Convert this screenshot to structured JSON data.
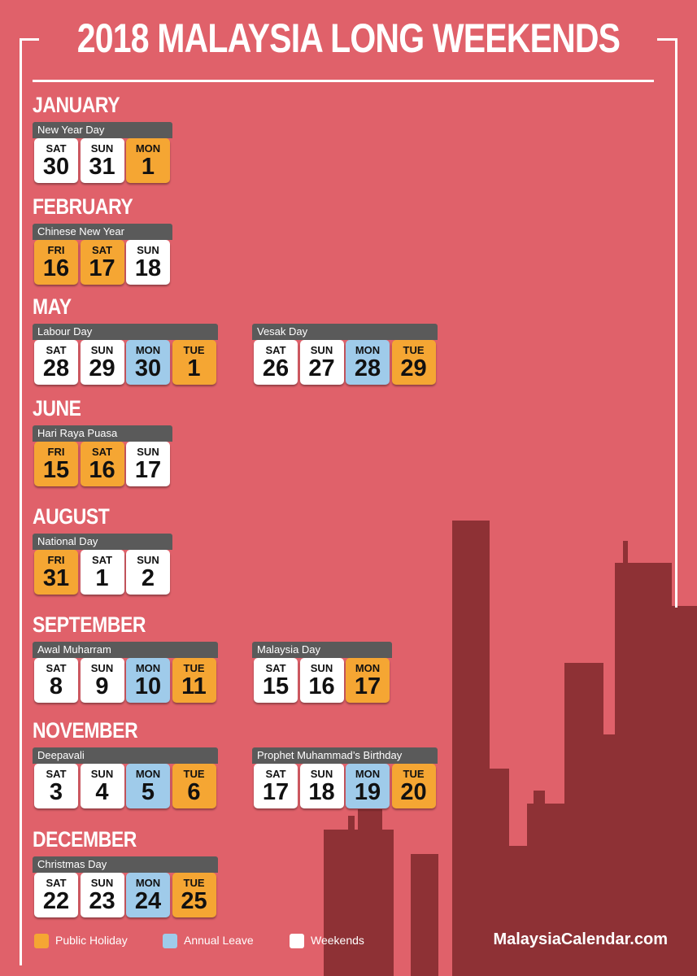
{
  "title": "2018 MALAYSIA LONG WEEKENDS",
  "months": [
    {
      "name": "JANUARY",
      "blocks": [
        {
          "holiday": "New Year Day",
          "days": [
            {
              "dow": "SAT",
              "date": 30,
              "color": "#ffffff"
            },
            {
              "dow": "SUN",
              "date": 31,
              "color": "#ffffff"
            },
            {
              "dow": "MON",
              "date": 1,
              "color": "#f5a633"
            }
          ]
        }
      ]
    },
    {
      "name": "FEBRUARY",
      "blocks": [
        {
          "holiday": "Chinese New Year",
          "days": [
            {
              "dow": "FRI",
              "date": 16,
              "color": "#f5a633"
            },
            {
              "dow": "SAT",
              "date": 17,
              "color": "#f5a633"
            },
            {
              "dow": "SUN",
              "date": 18,
              "color": "#ffffff"
            }
          ]
        }
      ]
    },
    {
      "name": "MAY",
      "blocks": [
        {
          "holiday": "Labour Day",
          "days": [
            {
              "dow": "SAT",
              "date": 28,
              "color": "#ffffff"
            },
            {
              "dow": "SUN",
              "date": 29,
              "color": "#ffffff"
            },
            {
              "dow": "MON",
              "date": 30,
              "color": "#9fcbea"
            },
            {
              "dow": "TUE",
              "date": 1,
              "color": "#f5a633"
            }
          ]
        },
        {
          "holiday": "Vesak Day",
          "days": [
            {
              "dow": "SAT",
              "date": 26,
              "color": "#ffffff"
            },
            {
              "dow": "SUN",
              "date": 27,
              "color": "#ffffff"
            },
            {
              "dow": "MON",
              "date": 28,
              "color": "#9fcbea"
            },
            {
              "dow": "TUE",
              "date": 29,
              "color": "#f5a633"
            }
          ]
        }
      ]
    },
    {
      "name": "JUNE",
      "blocks": [
        {
          "holiday": "Hari Raya Puasa",
          "days": [
            {
              "dow": "FRI",
              "date": 15,
              "color": "#f5a633"
            },
            {
              "dow": "SAT",
              "date": 16,
              "color": "#f5a633"
            },
            {
              "dow": "SUN",
              "date": 17,
              "color": "#ffffff"
            }
          ]
        }
      ]
    },
    {
      "name": "AUGUST",
      "blocks": [
        {
          "holiday": "National Day",
          "days": [
            {
              "dow": "FRI",
              "date": 31,
              "color": "#f5a633"
            },
            {
              "dow": "SAT",
              "date": 1,
              "color": "#ffffff"
            },
            {
              "dow": "SUN",
              "date": 2,
              "color": "#ffffff"
            }
          ]
        }
      ]
    },
    {
      "name": "SEPTEMBER",
      "blocks": [
        {
          "holiday": "Awal Muharram",
          "days": [
            {
              "dow": "SAT",
              "date": 8,
              "color": "#ffffff"
            },
            {
              "dow": "SUN",
              "date": 9,
              "color": "#ffffff"
            },
            {
              "dow": "MON",
              "date": 10,
              "color": "#9fcbea"
            },
            {
              "dow": "TUE",
              "date": 11,
              "color": "#f5a633"
            }
          ]
        },
        {
          "holiday": "Malaysia Day",
          "days": [
            {
              "dow": "SAT",
              "date": 15,
              "color": "#ffffff"
            },
            {
              "dow": "SUN",
              "date": 16,
              "color": "#ffffff"
            },
            {
              "dow": "MON",
              "date": 17,
              "color": "#f5a633"
            }
          ]
        }
      ]
    },
    {
      "name": "NOVEMBER",
      "blocks": [
        {
          "holiday": "Deepavali",
          "days": [
            {
              "dow": "SAT",
              "date": 3,
              "color": "#ffffff"
            },
            {
              "dow": "SUN",
              "date": 4,
              "color": "#ffffff"
            },
            {
              "dow": "MON",
              "date": 5,
              "color": "#9fcbea"
            },
            {
              "dow": "TUE",
              "date": 6,
              "color": "#f5a633"
            }
          ]
        },
        {
          "holiday": "Prophet Muhammad’s Birthday",
          "days": [
            {
              "dow": "SAT",
              "date": 17,
              "color": "#ffffff"
            },
            {
              "dow": "SUN",
              "date": 18,
              "color": "#ffffff"
            },
            {
              "dow": "MON",
              "date": 19,
              "color": "#9fcbea"
            },
            {
              "dow": "TUE",
              "date": 20,
              "color": "#f5a633"
            }
          ]
        }
      ]
    },
    {
      "name": "DECEMBER",
      "blocks": [
        {
          "holiday": "Christmas Day",
          "days": [
            {
              "dow": "SAT",
              "date": 22,
              "color": "#ffffff"
            },
            {
              "dow": "SUN",
              "date": 23,
              "color": "#ffffff"
            },
            {
              "dow": "MON",
              "date": 24,
              "color": "#9fcbea"
            },
            {
              "dow": "TUE",
              "date": 25,
              "color": "#f5a633"
            }
          ]
        }
      ]
    }
  ],
  "legend": [
    {
      "label": "Public Holiday",
      "color": "#f5a633"
    },
    {
      "label": "Annual Leave",
      "color": "#9fcbea"
    },
    {
      "label": "Weekends",
      "color": "#ffffff"
    }
  ],
  "website": "MalaysiaCalendar.com"
}
